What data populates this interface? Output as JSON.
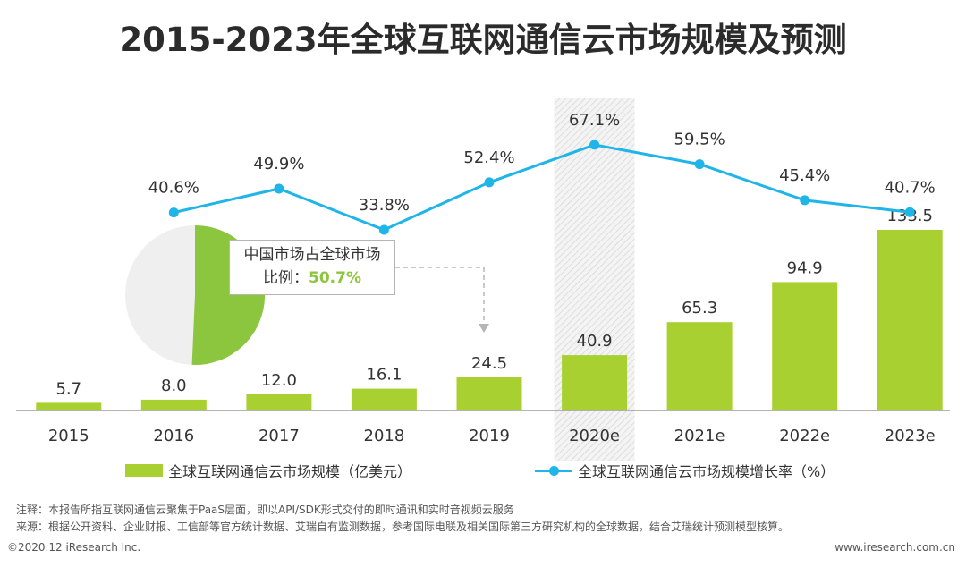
{
  "title": "2015-2023年全球互联网通信云市场规模及预测",
  "callout": {
    "line1": "中国市场占全球市场",
    "line2_prefix": "比例：",
    "value": "50.7%",
    "share": 50.7
  },
  "legend": {
    "bar": "全球互联网通信云市场规模（亿美元）",
    "line": "全球互联网通信云市场规模增长率（%）"
  },
  "notes": {
    "note": "注释：本报告所指互联网通信云聚焦于PaaS层面，即以API/SDK形式交付的即时通讯和实时音视频云服务",
    "source": "来源：根据公开资料、企业财报、工信部等官方统计数据、艾瑞自有监测数据，参考国际电联及相关国际第三方研究机构的全球数据，结合艾瑞统计预测模型核算。"
  },
  "footer": {
    "left": "©2020.12 iResearch Inc.",
    "right": "www.iresearch.com.cn"
  },
  "colors": {
    "bar": "#a8d030",
    "line": "#1fb5e8",
    "highlight": "#e3e3e3",
    "pie_green": "#8cc63f",
    "pie_grey": "#efefef"
  },
  "chart_data": {
    "type": "bar+line",
    "title": "2015-2023年全球互联网通信云市场规模及预测",
    "categories": [
      "2015",
      "2016",
      "2017",
      "2018",
      "2019",
      "2020e",
      "2021e",
      "2022e",
      "2023e"
    ],
    "highlight_category": "2020e",
    "series": [
      {
        "name": "全球互联网通信云市场规模（亿美元）",
        "type": "bar",
        "values": [
          5.7,
          8.0,
          12.0,
          16.1,
          24.5,
          40.9,
          65.3,
          94.9,
          133.5
        ],
        "labels": [
          "5.7",
          "8.0",
          "12.0",
          "16.1",
          "24.5",
          "40.9",
          "65.3",
          "94.9",
          "133.5"
        ]
      },
      {
        "name": "全球互联网通信云市场规模增长率（%）",
        "type": "line",
        "values": [
          null,
          40.6,
          49.9,
          33.8,
          52.4,
          67.1,
          59.5,
          45.4,
          40.7
        ],
        "labels": [
          "",
          "40.6%",
          "49.9%",
          "33.8%",
          "52.4%",
          "67.1%",
          "59.5%",
          "45.4%",
          "40.7%"
        ]
      }
    ],
    "bar_ylim": [
      0,
      150
    ],
    "line_ylim": [
      0,
      70
    ]
  }
}
